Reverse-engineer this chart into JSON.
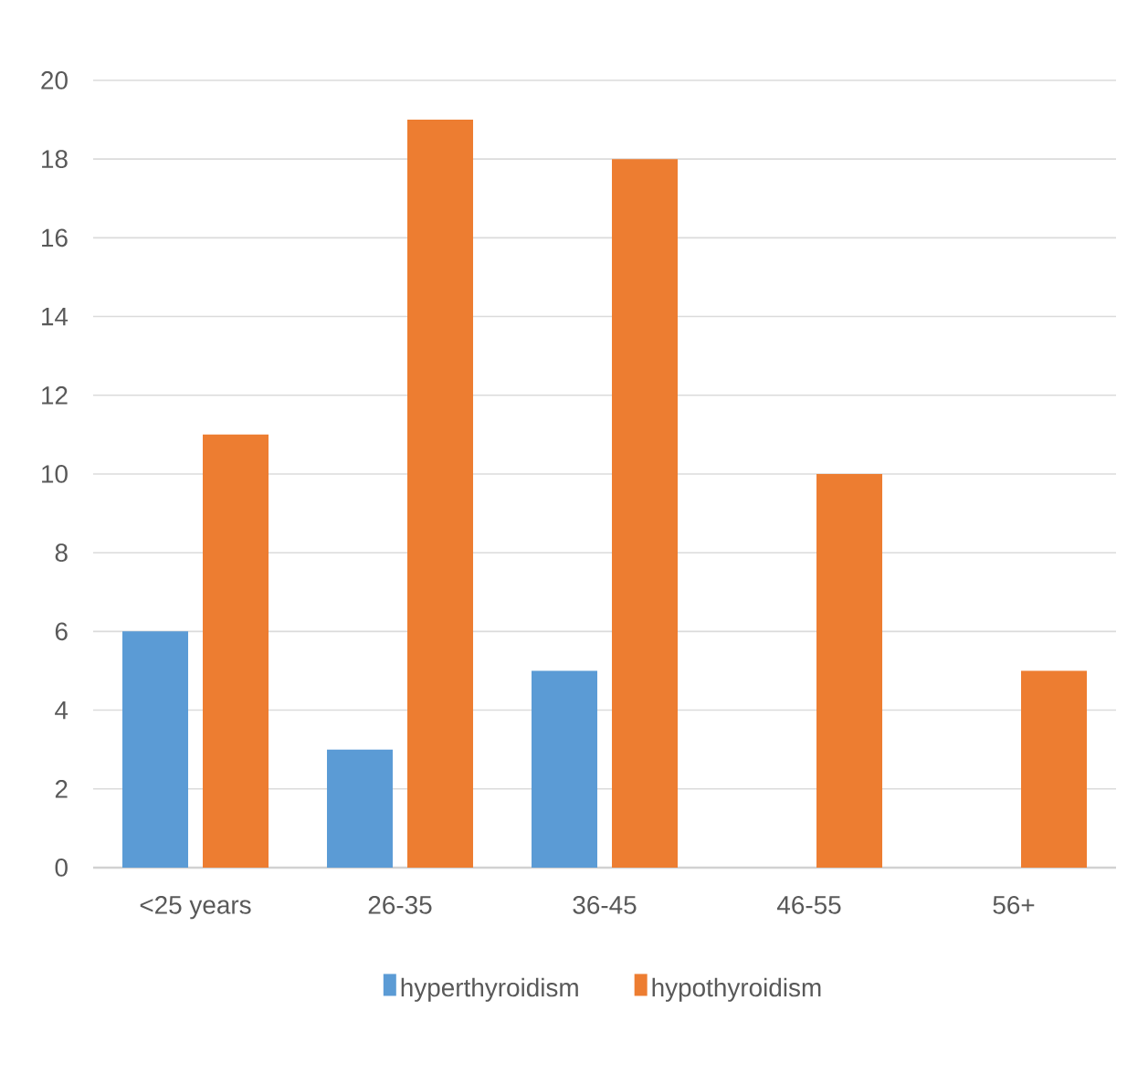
{
  "chart_data": {
    "type": "bar",
    "categories": [
      "<25 years",
      "26-35",
      "36-45",
      "46-55",
      "56+"
    ],
    "series": [
      {
        "name": "hyperthyroidism",
        "color": "#5b9bd5",
        "values": [
          6,
          3,
          5,
          0,
          0
        ]
      },
      {
        "name": "hypothyroidism",
        "color": "#ed7d31",
        "values": [
          11,
          19,
          18,
          10,
          5
        ]
      }
    ],
    "ylim": [
      0,
      20
    ],
    "yticks": [
      0,
      2,
      4,
      6,
      8,
      10,
      12,
      14,
      16,
      18,
      20
    ],
    "grid": "y",
    "legend": "bottom"
  }
}
